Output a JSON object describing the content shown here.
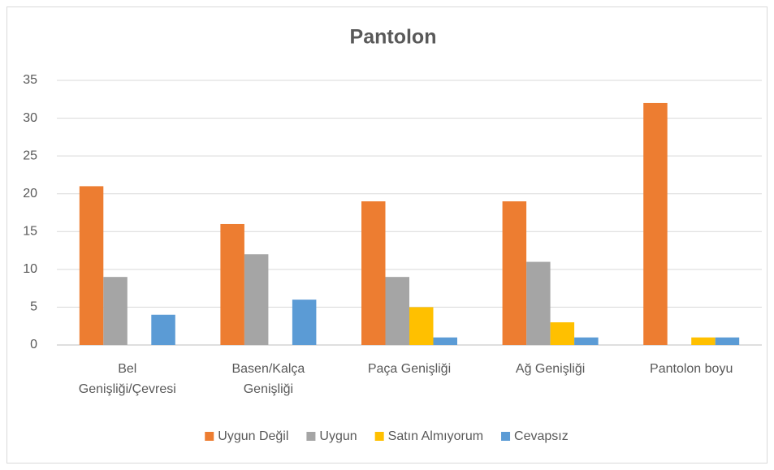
{
  "chart_data": {
    "type": "bar",
    "title": "Pantolon",
    "categories": [
      "Bel Genişliği/Çevresi",
      "Basen/Kalça Genişliği",
      "Paça Genişliği",
      "Ağ Genişliği",
      "Pantolon boyu"
    ],
    "series": [
      {
        "name": "Uygun Değil",
        "color": "#ED7D31",
        "values": [
          21,
          16,
          19,
          19,
          32
        ]
      },
      {
        "name": "Uygun",
        "color": "#A5A5A5",
        "values": [
          9,
          12,
          9,
          11,
          0
        ]
      },
      {
        "name": "Satın Almıyorum",
        "color": "#FFC000",
        "values": [
          0,
          0,
          5,
          3,
          1
        ]
      },
      {
        "name": "Cevapsız",
        "color": "#5B9BD5",
        "values": [
          4,
          6,
          1,
          1,
          1
        ]
      }
    ],
    "ylim": [
      0,
      35
    ],
    "yticks": [
      0,
      5,
      10,
      15,
      20,
      25,
      30,
      35
    ],
    "grid": true,
    "legend": "bottom"
  }
}
